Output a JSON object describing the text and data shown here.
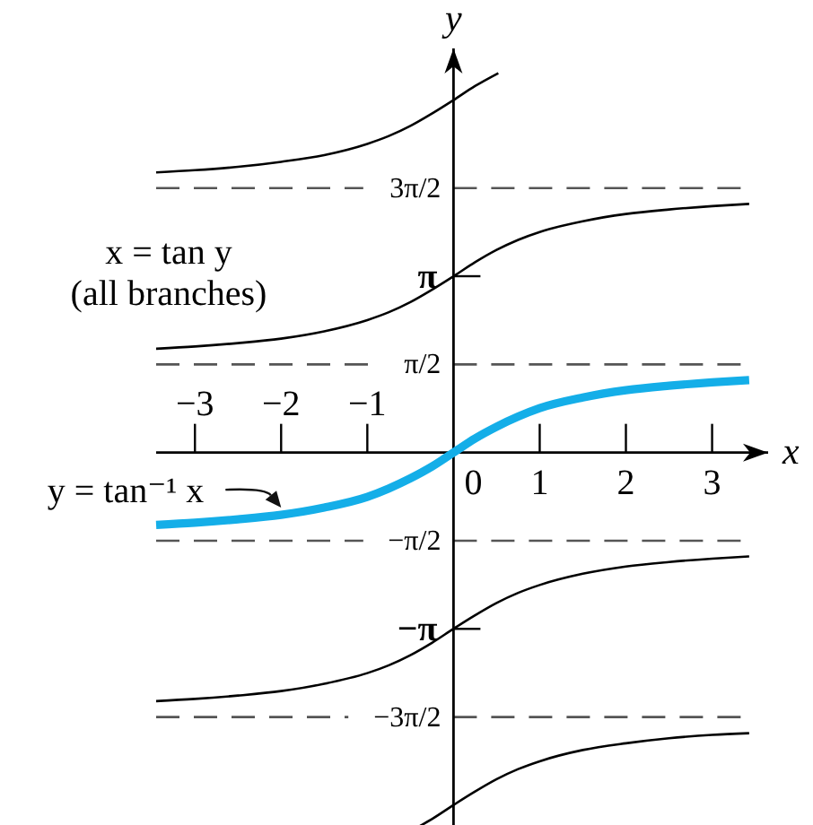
{
  "chart_data": {
    "type": "line",
    "xlabel": "x",
    "ylabel": "y",
    "xlim": [
      -3.45,
      3.65
    ],
    "ylim": [
      -6.7,
      7.2
    ],
    "xticks": [
      0,
      1,
      2,
      3
    ],
    "x2lim": [
      -3.45,
      3.65
    ],
    "x2ticks": [
      -3,
      -2,
      -1
    ],
    "yticks": [
      {
        "value": 3.14159,
        "label": "π"
      },
      {
        "value": -3.14159,
        "label": "−π"
      }
    ],
    "ref_lines": [
      {
        "axis": "y",
        "value": 4.71239,
        "label": "3π/2",
        "color": "#555555",
        "line_style": "dashed"
      },
      {
        "axis": "y",
        "value": 1.5708,
        "label": "π/2",
        "color": "#555555",
        "line_style": "dashed"
      },
      {
        "axis": "y",
        "value": -1.5708,
        "label": "−π/2",
        "color": "#555555",
        "line_style": "dashed"
      },
      {
        "axis": "y",
        "value": -4.71239,
        "label": "−3π/2",
        "color": "#555555",
        "line_style": "dashed"
      }
    ],
    "series": [
      {
        "color": "#14aee8",
        "x": [
          -3.45,
          -3,
          -2.5,
          -2,
          -1.5,
          -1,
          -0.75,
          -0.5,
          -0.25,
          0,
          0.25,
          0.5,
          0.75,
          1,
          1.5,
          2,
          2.5,
          3,
          3.43
        ],
        "values": [
          -1.29,
          -1.25,
          -1.19,
          -1.11,
          -0.98,
          -0.79,
          -0.64,
          -0.46,
          -0.25,
          0,
          0.25,
          0.46,
          0.64,
          0.79,
          0.98,
          1.11,
          1.19,
          1.25,
          1.29
        ]
      },
      {
        "color": "#000000",
        "x": [
          -3.45,
          -3,
          -2.5,
          -2,
          -1.5,
          -1,
          -0.75,
          -0.5,
          -0.25,
          0,
          0.25,
          0.52
        ],
        "values": [
          4.99,
          5.03,
          5.09,
          5.18,
          5.3,
          5.5,
          5.64,
          5.82,
          6.04,
          6.28,
          6.53,
          6.76
        ]
      },
      {
        "color": "#000000",
        "x": [
          -3.45,
          -3,
          -2.5,
          -2,
          -1.5,
          -1,
          -0.75,
          -0.5,
          -0.25,
          0,
          0.25,
          0.5,
          0.75,
          1,
          1.5,
          2,
          2.5,
          3,
          3.43
        ],
        "values": [
          1.85,
          1.89,
          1.95,
          2.03,
          2.16,
          2.36,
          2.5,
          2.68,
          2.9,
          3.14,
          3.39,
          3.61,
          3.79,
          3.93,
          4.12,
          4.25,
          4.33,
          4.39,
          4.43
        ]
      },
      {
        "color": "#000000",
        "x": [
          -3.45,
          -3,
          -2.5,
          -2,
          -1.5,
          -1,
          -0.75,
          -0.5,
          -0.25,
          0,
          0.25,
          0.5,
          0.75,
          1,
          1.5,
          2,
          2.5,
          3,
          3.43
        ],
        "values": [
          -4.43,
          -4.39,
          -4.33,
          -4.25,
          -4.12,
          -3.93,
          -3.79,
          -3.61,
          -3.39,
          -3.14,
          -2.9,
          -2.68,
          -2.5,
          -2.36,
          -2.16,
          -2.03,
          -1.95,
          -1.89,
          -1.85
        ]
      },
      {
        "color": "#000000",
        "x": [
          -0.42,
          -0.25,
          0,
          0.25,
          0.5,
          0.75,
          1,
          1.5,
          2,
          2.5,
          3,
          3.43
        ],
        "values": [
          -6.68,
          -6.53,
          -6.28,
          -6.04,
          -5.82,
          -5.64,
          -5.5,
          -5.3,
          -5.18,
          -5.09,
          -5.03,
          -5.0
        ]
      }
    ],
    "annotations": [
      {
        "text": "y = tan⁻¹ x",
        "x": -2,
        "y": -1.11
      },
      "x = tan y\n(all branches)"
    ]
  }
}
